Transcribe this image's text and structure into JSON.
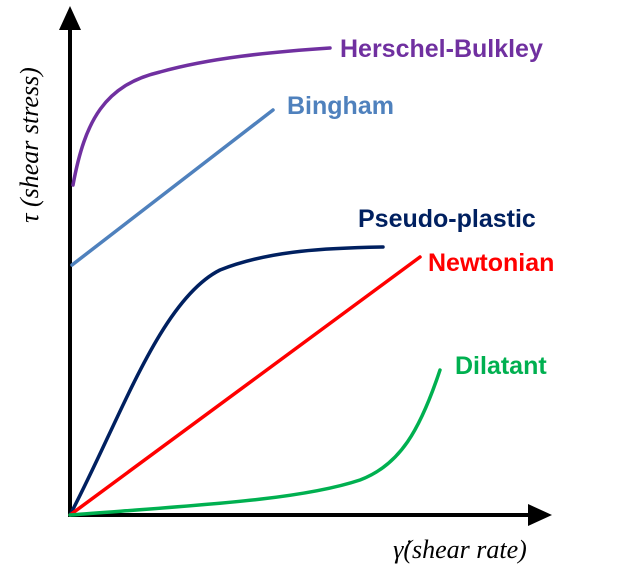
{
  "diagram": {
    "y_axis_label": "τ (shear stress)",
    "x_axis_label": "γ̇(shear rate)",
    "curves": [
      {
        "label": "Herschel-Bulkley"
      },
      {
        "label": "Bingham"
      },
      {
        "label": "Pseudo-plastic"
      },
      {
        "label": "Newtonian"
      },
      {
        "label": "Dilatant"
      }
    ]
  }
}
